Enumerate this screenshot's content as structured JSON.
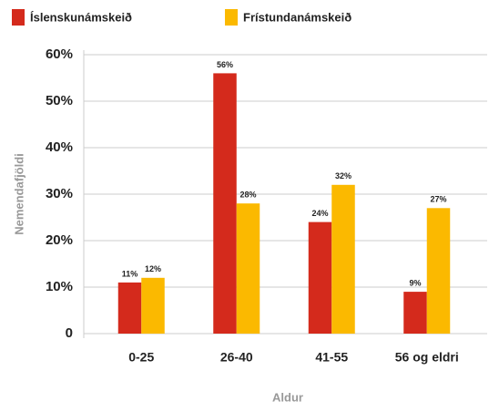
{
  "chart_data": {
    "type": "bar",
    "x_label": "Aldur",
    "y_label": "Nemendafjöldi",
    "categories": [
      "0-25",
      "26-40",
      "41-55",
      "56 og eldri"
    ],
    "series": [
      {
        "name": "Íslenskunámskeið",
        "color": "#d42a1c",
        "values": [
          11,
          56,
          24,
          9
        ],
        "value_labels": [
          "11%",
          "56%",
          "24%",
          "9%"
        ]
      },
      {
        "name": "Frístundanámskeið",
        "color": "#fbb900",
        "values": [
          12,
          28,
          32,
          27
        ],
        "value_labels": [
          "12%",
          "28%",
          "32%",
          "27%"
        ]
      }
    ],
    "ylim": [
      0,
      60
    ],
    "yticks": [
      0,
      {
        "value": 10,
        "label": "10%"
      },
      {
        "value": 20,
        "label": "20%"
      },
      {
        "value": 30,
        "label": "30%"
      },
      {
        "value": 40,
        "label": "40%"
      },
      {
        "value": 50,
        "label": "50%"
      },
      {
        "value": 60,
        "label": "60%"
      }
    ],
    "grid": true,
    "legend": "top-left"
  }
}
